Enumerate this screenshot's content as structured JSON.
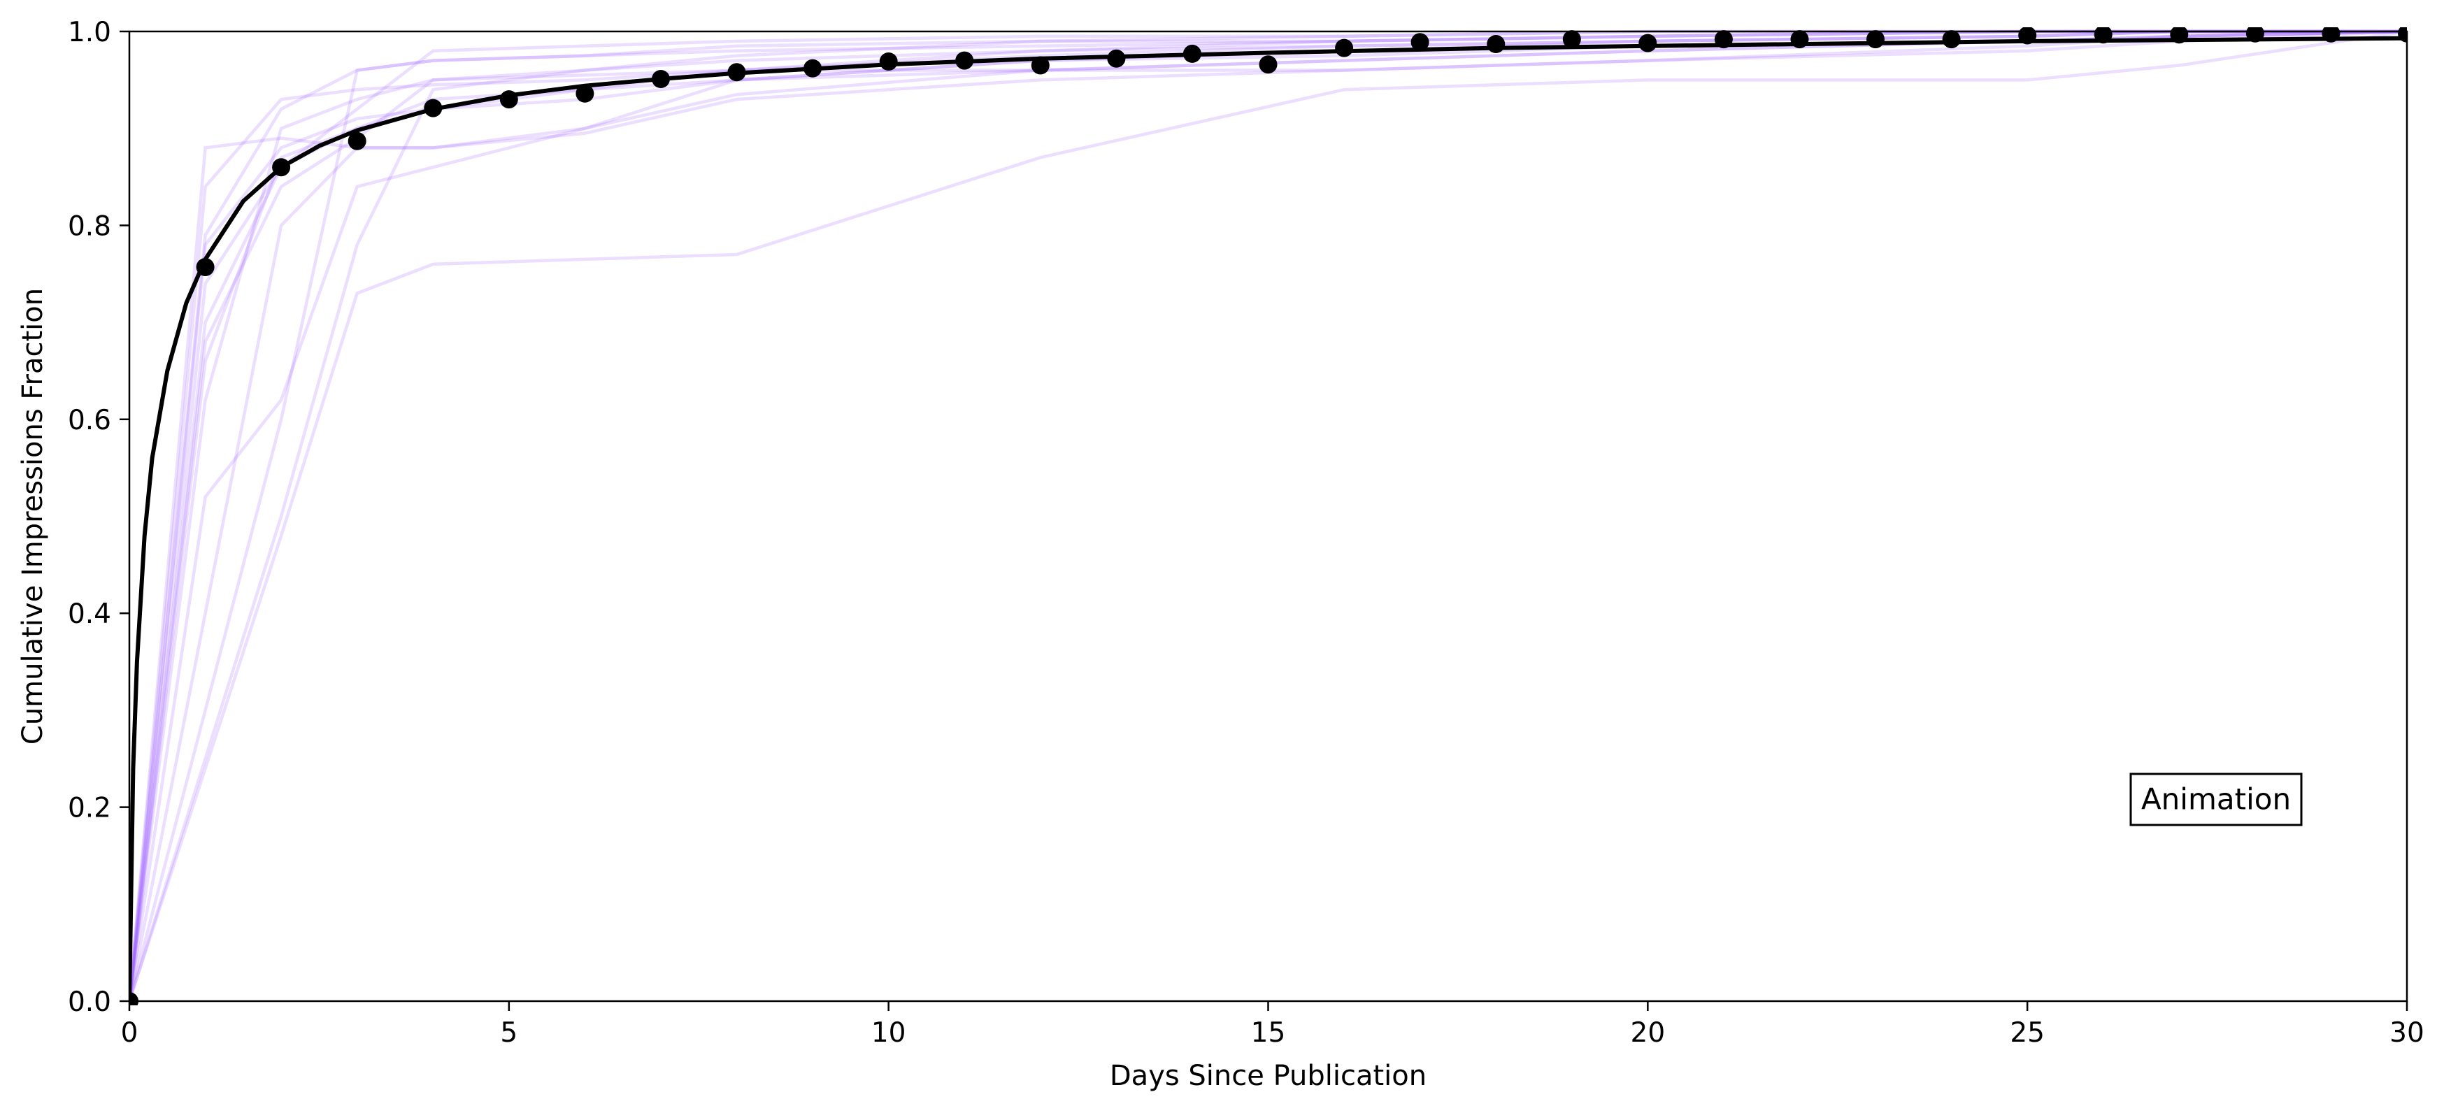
{
  "chart_data": {
    "type": "line",
    "xlabel": "Days Since Publication",
    "ylabel": "Cumulative Impressions Fraction",
    "xlim": [
      0,
      30
    ],
    "ylim": [
      0.0,
      1.0
    ],
    "xticks": [
      0,
      5,
      10,
      15,
      20,
      25,
      30
    ],
    "yticks": [
      0.0,
      0.2,
      0.4,
      0.6,
      0.8,
      1.0
    ],
    "ytick_labels": [
      "0.0",
      "0.2",
      "0.4",
      "0.6",
      "0.8",
      "1.0"
    ],
    "grid": false,
    "annotation": "Animation",
    "colors": {
      "individual": "#9b59ff",
      "mean_points": "#000000",
      "fit": "#000000"
    },
    "individual_series": [
      {
        "x": [
          0,
          1,
          2,
          3,
          4,
          6,
          8,
          12,
          16,
          20,
          25,
          27,
          30
        ],
        "y": [
          0.0,
          0.88,
          0.89,
          0.88,
          0.88,
          0.9,
          0.95,
          0.97,
          0.98,
          0.99,
          0.995,
          1.0,
          1.0
        ]
      },
      {
        "x": [
          0,
          1,
          2,
          3,
          4,
          6,
          8,
          12,
          16,
          20,
          25,
          27,
          30
        ],
        "y": [
          0.0,
          0.84,
          0.93,
          0.94,
          0.945,
          0.95,
          0.96,
          0.98,
          0.99,
          0.995,
          1.0,
          1.0,
          1.0
        ]
      },
      {
        "x": [
          0,
          1,
          2,
          3,
          4,
          6,
          8,
          12,
          16,
          20,
          25,
          27,
          30
        ],
        "y": [
          0.0,
          0.79,
          0.92,
          0.96,
          0.97,
          0.975,
          0.985,
          0.99,
          0.995,
          1.0,
          1.0,
          1.0,
          1.0
        ]
      },
      {
        "x": [
          0,
          1,
          2,
          3,
          4,
          6,
          8,
          12,
          16,
          20,
          25,
          27,
          30
        ],
        "y": [
          0.0,
          0.7,
          0.86,
          0.9,
          0.92,
          0.94,
          0.96,
          0.975,
          0.985,
          0.99,
          0.995,
          1.0,
          1.0
        ]
      },
      {
        "x": [
          0,
          1,
          2,
          3,
          4,
          6,
          8,
          12,
          16,
          20,
          25,
          27,
          30
        ],
        "y": [
          0.0,
          0.52,
          0.62,
          0.84,
          0.86,
          0.9,
          0.935,
          0.96,
          0.97,
          0.98,
          0.99,
          0.995,
          1.0
        ]
      },
      {
        "x": [
          0,
          1,
          2,
          3,
          4,
          6,
          8,
          12,
          16,
          20,
          25,
          27,
          30
        ],
        "y": [
          0.0,
          0.4,
          0.8,
          0.88,
          0.88,
          0.895,
          0.93,
          0.95,
          0.96,
          0.97,
          0.985,
          0.995,
          1.0
        ]
      },
      {
        "x": [
          0,
          1,
          2,
          3,
          4,
          6,
          8,
          12,
          16,
          20,
          25,
          27,
          30
        ],
        "y": [
          0.0,
          0.3,
          0.6,
          0.96,
          0.97,
          0.975,
          0.98,
          0.985,
          0.99,
          0.995,
          1.0,
          1.0,
          1.0
        ]
      },
      {
        "x": [
          0,
          1,
          2,
          3,
          4,
          6,
          8,
          12,
          16,
          20,
          25,
          27,
          30
        ],
        "y": [
          0.0,
          0.25,
          0.5,
          0.78,
          0.94,
          0.96,
          0.97,
          0.98,
          0.985,
          0.99,
          0.995,
          1.0,
          1.0
        ]
      },
      {
        "x": [
          0,
          1,
          2,
          3,
          4,
          6,
          8,
          12,
          16,
          20,
          25,
          27,
          30
        ],
        "y": [
          0.0,
          0.24,
          0.48,
          0.73,
          0.76,
          0.765,
          0.77,
          0.87,
          0.94,
          0.95,
          0.95,
          0.965,
          1.0
        ]
      },
      {
        "x": [
          0,
          1,
          2,
          3,
          4,
          6,
          8,
          12,
          16,
          20,
          25,
          27,
          30
        ],
        "y": [
          0.0,
          0.68,
          0.84,
          0.89,
          0.95,
          0.955,
          0.96,
          0.96,
          0.96,
          0.97,
          0.98,
          0.99,
          1.0
        ]
      },
      {
        "x": [
          0,
          1,
          2,
          3,
          4,
          6,
          8,
          12,
          16,
          20,
          25,
          27,
          30
        ],
        "y": [
          0.0,
          0.62,
          0.9,
          0.93,
          0.95,
          0.96,
          0.975,
          0.99,
          0.99,
          0.995,
          1.0,
          1.0,
          1.0
        ]
      },
      {
        "x": [
          0,
          1,
          2,
          3,
          4,
          6,
          8,
          12,
          16,
          20,
          25,
          27,
          30
        ],
        "y": [
          0.0,
          0.74,
          0.86,
          0.92,
          0.98,
          0.985,
          0.99,
          0.995,
          0.995,
          1.0,
          1.0,
          1.0,
          1.0
        ]
      },
      {
        "x": [
          0,
          1,
          2,
          3,
          4,
          6,
          8,
          12,
          16,
          20,
          25,
          27,
          30
        ],
        "y": [
          0.0,
          0.66,
          0.87,
          0.9,
          0.93,
          0.94,
          0.95,
          0.97,
          0.975,
          0.985,
          0.99,
          0.995,
          1.0
        ]
      },
      {
        "x": [
          0,
          1,
          2,
          3,
          4,
          6,
          8,
          12,
          16,
          20,
          25,
          27,
          30
        ],
        "y": [
          0.0,
          0.78,
          0.88,
          0.91,
          0.92,
          0.93,
          0.95,
          0.96,
          0.97,
          0.98,
          0.99,
          0.995,
          1.0
        ]
      }
    ],
    "mean_points": {
      "x": [
        0,
        1,
        2,
        3,
        4,
        5,
        6,
        7,
        8,
        9,
        10,
        11,
        12,
        13,
        14,
        15,
        16,
        17,
        18,
        19,
        20,
        21,
        22,
        23,
        24,
        25,
        26,
        27,
        28,
        29,
        30
      ],
      "y": [
        0.0,
        0.757,
        0.86,
        0.887,
        0.921,
        0.93,
        0.936,
        0.951,
        0.958,
        0.962,
        0.969,
        0.97,
        0.965,
        0.972,
        0.977,
        0.966,
        0.983,
        0.989,
        0.987,
        0.992,
        0.988,
        0.992,
        0.992,
        0.992,
        0.992,
        0.996,
        0.997,
        0.997,
        0.998,
        0.998,
        0.998
      ]
    },
    "fit_curve": {
      "x": [
        0,
        0.05,
        0.1,
        0.2,
        0.3,
        0.5,
        0.75,
        1,
        1.5,
        2,
        2.5,
        3,
        4,
        5,
        6,
        7,
        8,
        10,
        12,
        15,
        18,
        21,
        25,
        30
      ],
      "y": [
        0.0,
        0.24,
        0.35,
        0.48,
        0.56,
        0.65,
        0.72,
        0.765,
        0.825,
        0.86,
        0.882,
        0.898,
        0.92,
        0.934,
        0.944,
        0.951,
        0.957,
        0.966,
        0.972,
        0.978,
        0.983,
        0.986,
        0.99,
        0.993
      ]
    }
  }
}
